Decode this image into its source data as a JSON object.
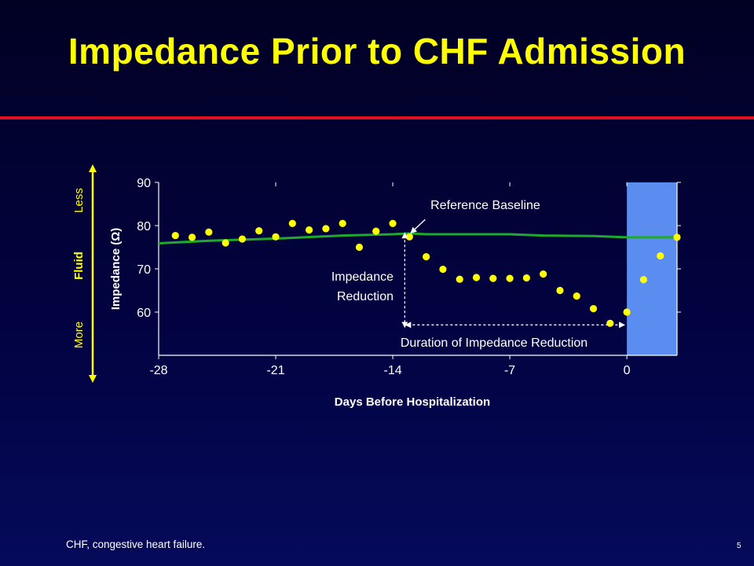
{
  "slide": {
    "title": "Impedance Prior to CHF Admission",
    "footnote": "CHF, congestive heart failure.",
    "page_number": "5"
  },
  "fluid_scale": {
    "label": "Fluid",
    "more": "More",
    "less": "Less",
    "color": "#ffff00"
  },
  "chart_data": {
    "type": "scatter",
    "xlabel": "Days Before Hospitalization",
    "ylabel": "Impedance (Ω)",
    "xlim": [
      -28,
      3
    ],
    "ylim": [
      50,
      90
    ],
    "xticks": [
      -28,
      -21,
      -14,
      -7,
      0
    ],
    "xtick_labels": [
      "-28",
      "-21",
      "-14",
      "-7",
      "0"
    ],
    "yticks": [
      60,
      70,
      80,
      90
    ],
    "ytick_labels": [
      "60",
      "70",
      "80",
      "90"
    ],
    "hospitalization_band": [
      0,
      3
    ],
    "series": [
      {
        "type": "scatter",
        "color": "#ffff00",
        "points": [
          [
            -27,
            77.7
          ],
          [
            -26,
            77.3
          ],
          [
            -25,
            78.5
          ],
          [
            -24,
            76.0
          ],
          [
            -23,
            76.9
          ],
          [
            -22,
            78.8
          ],
          [
            -21,
            77.4
          ],
          [
            -20,
            80.5
          ],
          [
            -19,
            79.0
          ],
          [
            -18,
            79.3
          ],
          [
            -17,
            80.5
          ],
          [
            -16,
            75.0
          ],
          [
            -15,
            78.7
          ],
          [
            -14,
            80.5
          ],
          [
            -13,
            77.4
          ],
          [
            -12,
            72.8
          ],
          [
            -11,
            69.9
          ],
          [
            -10,
            67.6
          ],
          [
            -9,
            68.0
          ],
          [
            -8,
            67.8
          ],
          [
            -7,
            67.8
          ],
          [
            -6,
            67.9
          ],
          [
            -5,
            68.8
          ],
          [
            -4,
            65.0
          ],
          [
            -3,
            63.7
          ],
          [
            -2,
            60.8
          ],
          [
            -1,
            57.4
          ],
          [
            0,
            60.0
          ],
          [
            1,
            67.5
          ],
          [
            2,
            73.0
          ],
          [
            3,
            77.3
          ]
        ]
      },
      {
        "type": "line",
        "color": "#1faa2e",
        "points": [
          [
            -28,
            75.9
          ],
          [
            -25,
            76.5
          ],
          [
            -21,
            77.0
          ],
          [
            -17,
            77.7
          ],
          [
            -14,
            78.0
          ],
          [
            -13,
            78.2
          ],
          [
            -12,
            78.0
          ],
          [
            -7,
            78.0
          ],
          [
            -5,
            77.7
          ],
          [
            -2,
            77.6
          ],
          [
            0,
            77.3
          ],
          [
            3,
            77.3
          ]
        ]
      }
    ],
    "annotations": {
      "reference_baseline": "Reference Baseline",
      "impedance_reduction": [
        "Impedance",
        "Reduction"
      ],
      "duration": "Duration of Impedance Reduction"
    },
    "band_color": "#5b8cf0",
    "axis_color": "#ffffff"
  }
}
